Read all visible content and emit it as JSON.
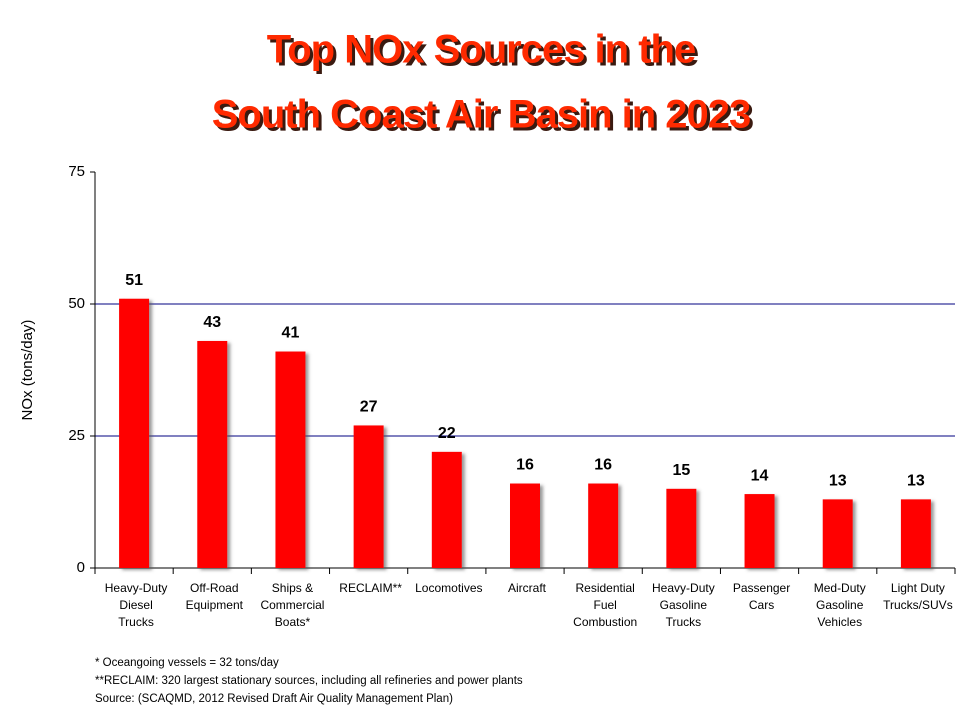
{
  "chart_data": {
    "type": "bar",
    "title": [
      "Top NOx Sources in the",
      "South Coast Air Basin in 2023"
    ],
    "y_label": "NOx (tons/day)",
    "categories": [
      [
        "Heavy-Duty",
        "Diesel",
        "Trucks"
      ],
      [
        "Off-Road",
        "Equipment"
      ],
      [
        "Ships &",
        "Commercial",
        "Boats*"
      ],
      [
        "RECLAIM**"
      ],
      [
        "Locomotives"
      ],
      [
        "Aircraft"
      ],
      [
        "Residential",
        "Fuel",
        "Combustion"
      ],
      [
        "Heavy-Duty",
        "Gasoline",
        "Trucks"
      ],
      [
        "Passenger",
        "Cars"
      ],
      [
        "Med-Duty",
        "Gasoline",
        "Vehicles"
      ],
      [
        "Light Duty",
        "Trucks/SUVs"
      ]
    ],
    "values": [
      51,
      43,
      41,
      27,
      22,
      16,
      16,
      15,
      14,
      13,
      13
    ],
    "color": "#ff0000",
    "ylim": [
      0,
      75
    ],
    "yticks": [
      0,
      25,
      50,
      75
    ],
    "grid": true,
    "grid_color": "#000080",
    "notes": [
      "* Oceangoing vessels = 32 tons/day",
      "**RECLAIM: 320 largest stationary sources, including all refineries and power plants",
      "Source: (SCAQMD, 2012  Revised Draft Air  Quality Management   Plan)"
    ]
  }
}
